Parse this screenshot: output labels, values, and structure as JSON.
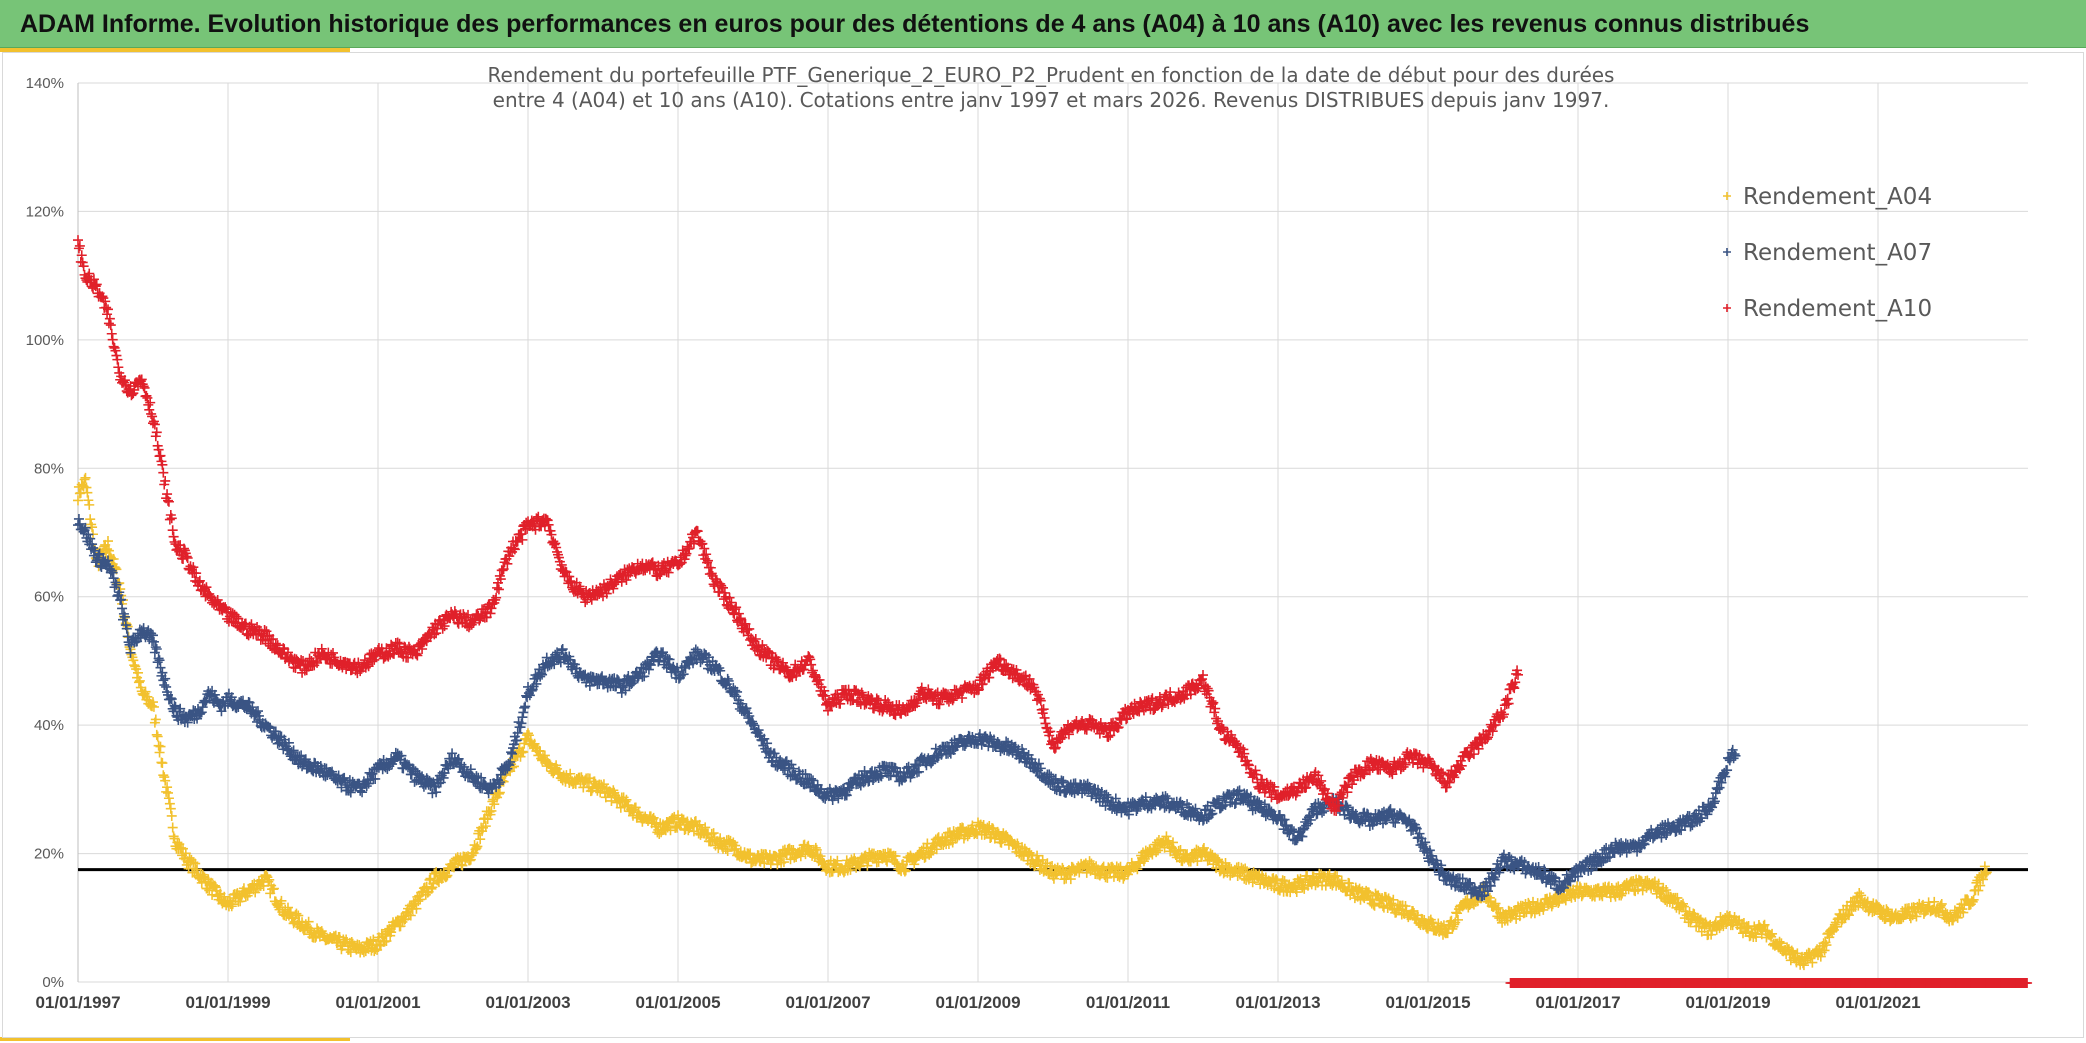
{
  "banner": {
    "title": "ADAM Informe. Evolution historique des performances en euros pour des détentions de 4 ans (A04) à 10 ans (A10) avec les revenus connus distribués",
    "background": "#77c477",
    "accent": "#f2c12e"
  },
  "chart_data": {
    "type": "scatter",
    "title_line1": "Rendement du portefeuille PTF_Generique_2_EURO_P2_Prudent en fonction de la date de début pour des durées",
    "title_line2": "entre 4 (A04) et 10 ans (A10). Cotations entre janv 1997 et mars 2026. Revenus DISTRIBUES depuis janv 1997.",
    "x_unit": "year",
    "xlim": [
      1997.0,
      2023.0
    ],
    "ylim": [
      0,
      140
    ],
    "y_ticks": [
      0,
      20,
      40,
      60,
      80,
      100,
      120,
      140
    ],
    "y_tick_labels": [
      "0%",
      "20%",
      "40%",
      "60%",
      "80%",
      "100%",
      "120%",
      "140%"
    ],
    "x_tick_values": [
      1997,
      1999,
      2001,
      2003,
      2005,
      2007,
      2009,
      2011,
      2013,
      2015,
      2017,
      2019,
      2021
    ],
    "x_tick_labels": [
      "01/01/1997",
      "01/01/1999",
      "01/01/2001",
      "01/01/2003",
      "01/01/2005",
      "01/01/2007",
      "01/01/2009",
      "01/01/2011",
      "01/01/2013",
      "01/01/2015",
      "01/01/2017",
      "01/01/2019",
      "01/01/2021"
    ],
    "grid": true,
    "legend_position": "top-right",
    "reference_line": {
      "y": 17.5,
      "color": "#000000"
    },
    "marker": "+",
    "series": [
      {
        "name": "Rendement_A04",
        "color": "#f2c12e",
        "x": [
          1997.0,
          1997.1,
          1997.25,
          1997.4,
          1997.55,
          1997.7,
          1997.85,
          1998.0,
          1998.15,
          1998.3,
          1998.45,
          1998.6,
          1998.75,
          1998.9,
          1999.0,
          1999.25,
          1999.5,
          1999.75,
          2000.0,
          2000.25,
          2000.5,
          2000.75,
          2001.0,
          2001.25,
          2001.5,
          2001.75,
          2002.0,
          2002.25,
          2002.5,
          2002.75,
          2003.0,
          2003.25,
          2003.5,
          2003.75,
          2004.0,
          2004.25,
          2004.5,
          2004.75,
          2005.0,
          2005.25,
          2005.5,
          2005.75,
          2006.0,
          2006.25,
          2006.5,
          2006.75,
          2007.0,
          2007.25,
          2007.5,
          2007.75,
          2008.0,
          2008.25,
          2008.5,
          2008.75,
          2009.0,
          2009.25,
          2009.5,
          2009.75,
          2010.0,
          2010.25,
          2010.5,
          2010.75,
          2011.0,
          2011.25,
          2011.5,
          2011.75,
          2012.0,
          2012.25,
          2012.5,
          2012.75,
          2013.0,
          2013.25,
          2013.5,
          2013.75,
          2014.0,
          2014.25,
          2014.5,
          2014.75,
          2015.0,
          2015.25,
          2015.5,
          2015.75,
          2016.0,
          2016.25,
          2016.5,
          2016.75,
          2017.0,
          2017.25,
          2017.5,
          2017.75,
          2018.0,
          2018.25,
          2018.5,
          2018.75,
          2019.0,
          2019.25,
          2019.5,
          2019.75,
          2020.0,
          2020.25,
          2020.5,
          2020.75,
          2021.0,
          2021.25,
          2021.5,
          2021.75,
          2022.0,
          2022.25,
          2022.45
        ],
        "y": [
          76,
          78,
          65,
          68,
          62,
          52,
          45,
          43,
          32,
          22,
          19,
          17,
          15,
          13,
          12,
          14,
          16,
          11,
          9,
          7,
          6,
          5,
          6,
          9,
          12,
          16,
          18,
          20,
          27,
          33,
          38,
          34,
          32,
          31,
          30,
          28,
          26,
          24,
          25,
          24,
          22,
          21,
          19,
          19,
          20,
          21,
          18,
          18,
          19,
          20,
          18,
          20,
          22,
          23,
          24,
          23,
          21,
          19,
          17,
          17,
          18,
          17,
          17,
          20,
          22,
          19,
          20,
          18,
          17,
          16,
          15,
          15,
          16,
          16,
          14,
          13,
          12,
          11,
          9,
          8,
          12,
          14,
          10,
          11,
          12,
          13,
          14,
          14,
          14,
          15,
          15,
          13,
          10,
          8,
          10,
          8,
          8,
          5,
          3,
          5,
          10,
          13,
          11,
          10,
          11,
          12,
          10,
          13,
          18
        ]
      },
      {
        "name": "Rendement_A07",
        "color": "#3a5484",
        "x": [
          1997.0,
          1997.1,
          1997.25,
          1997.4,
          1997.55,
          1997.7,
          1997.85,
          1998.0,
          1998.15,
          1998.3,
          1998.45,
          1998.6,
          1998.75,
          1998.9,
          1999.0,
          1999.25,
          1999.5,
          1999.75,
          2000.0,
          2000.25,
          2000.5,
          2000.75,
          2001.0,
          2001.25,
          2001.5,
          2001.75,
          2002.0,
          2002.25,
          2002.5,
          2002.75,
          2003.0,
          2003.25,
          2003.5,
          2003.75,
          2004.0,
          2004.25,
          2004.5,
          2004.75,
          2005.0,
          2005.25,
          2005.5,
          2005.75,
          2006.0,
          2006.25,
          2006.5,
          2006.75,
          2007.0,
          2007.25,
          2007.5,
          2007.75,
          2008.0,
          2008.25,
          2008.5,
          2008.75,
          2009.0,
          2009.25,
          2009.5,
          2009.75,
          2010.0,
          2010.25,
          2010.5,
          2010.75,
          2011.0,
          2011.25,
          2011.5,
          2011.75,
          2012.0,
          2012.25,
          2012.5,
          2012.75,
          2013.0,
          2013.25,
          2013.5,
          2013.75,
          2014.0,
          2014.25,
          2014.5,
          2014.75,
          2015.0,
          2015.25,
          2015.5,
          2015.75,
          2016.0,
          2016.25,
          2016.5,
          2016.75,
          2017.0,
          2017.25,
          2017.5,
          2017.75,
          2018.0,
          2018.25,
          2018.5,
          2018.75,
          2019.0,
          2019.1
        ],
        "y": [
          72,
          70,
          66,
          65,
          60,
          52,
          55,
          53,
          47,
          42,
          41,
          42,
          45,
          43,
          44,
          43,
          40,
          37,
          34,
          33,
          31,
          30,
          33,
          35,
          32,
          30,
          35,
          32,
          30,
          34,
          45,
          50,
          51,
          47,
          47,
          46,
          48,
          51,
          48,
          51,
          49,
          45,
          40,
          35,
          33,
          31,
          29,
          30,
          32,
          33,
          32,
          34,
          36,
          37,
          38,
          37,
          36,
          34,
          31,
          30,
          30,
          28,
          27,
          28,
          28,
          27,
          26,
          28,
          29,
          27,
          26,
          22,
          27,
          28,
          26,
          25,
          26,
          25,
          20,
          16,
          15,
          14,
          19,
          18,
          17,
          15,
          17,
          19,
          21,
          21,
          23,
          24,
          25,
          27,
          34,
          36
        ]
      },
      {
        "name": "Rendement_A10",
        "color": "#e0202a",
        "x": [
          1997.0,
          1997.1,
          1997.25,
          1997.4,
          1997.55,
          1997.7,
          1997.85,
          1998.0,
          1998.15,
          1998.3,
          1998.45,
          1998.6,
          1998.75,
          1998.9,
          1999.0,
          1999.25,
          1999.5,
          1999.75,
          2000.0,
          2000.25,
          2000.5,
          2000.75,
          2001.0,
          2001.25,
          2001.5,
          2001.75,
          2002.0,
          2002.25,
          2002.5,
          2002.75,
          2003.0,
          2003.25,
          2003.5,
          2003.75,
          2004.0,
          2004.25,
          2004.5,
          2004.75,
          2005.0,
          2005.25,
          2005.5,
          2005.75,
          2006.0,
          2006.25,
          2006.5,
          2006.75,
          2007.0,
          2007.25,
          2007.5,
          2007.75,
          2008.0,
          2008.25,
          2008.5,
          2008.75,
          2009.0,
          2009.25,
          2009.5,
          2009.75,
          2010.0,
          2010.25,
          2010.5,
          2010.75,
          2011.0,
          2011.25,
          2011.5,
          2011.75,
          2012.0,
          2012.25,
          2012.5,
          2012.75,
          2013.0,
          2013.25,
          2013.5,
          2013.75,
          2014.0,
          2014.25,
          2014.5,
          2014.75,
          2015.0,
          2015.25,
          2015.5,
          2015.75,
          2016.0,
          2016.2
        ],
        "y": [
          115,
          110,
          108,
          104,
          95,
          92,
          94,
          88,
          78,
          68,
          66,
          62,
          60,
          58,
          57,
          55,
          54,
          51,
          49,
          51,
          50,
          49,
          51,
          52,
          51,
          55,
          57,
          56,
          58,
          67,
          71,
          72,
          63,
          60,
          61,
          63,
          65,
          64,
          65,
          70,
          62,
          58,
          53,
          50,
          48,
          50,
          43,
          45,
          44,
          43,
          42,
          45,
          44,
          45,
          46,
          50,
          48,
          46,
          37,
          40,
          40,
          39,
          42,
          43,
          44,
          45,
          47,
          39,
          36,
          31,
          29,
          30,
          32,
          27,
          32,
          34,
          33,
          35,
          34,
          31,
          35,
          38,
          42,
          48
        ]
      }
    ],
    "zero_band": {
      "x_start": 2016.1,
      "x_end": 2023.0,
      "y": 0,
      "color": "#e0202a"
    }
  }
}
